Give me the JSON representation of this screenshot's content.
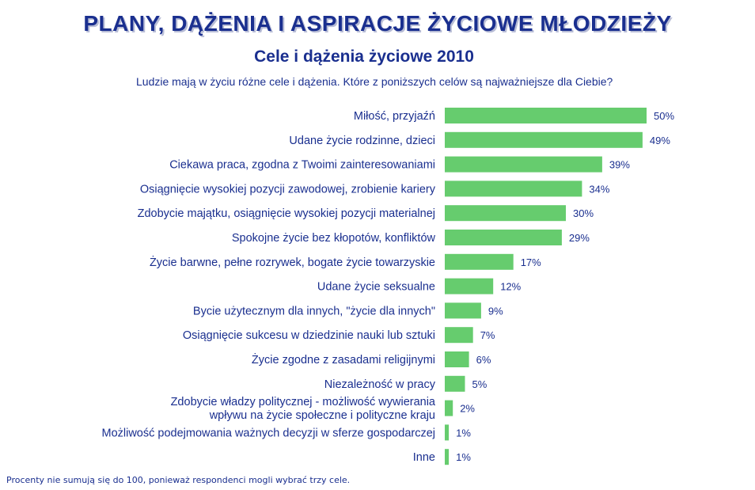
{
  "header": {
    "title": "PLANY, DĄŻENIA I ASPIRACJE ŻYCIOWE MŁODZIEŻY",
    "subtitle": "Cele i dążenia życiowe 2010",
    "question": "Ludzie mają w życiu różne cele i dążenia. Które z poniższych celów są najważniejsze dla Ciebie?"
  },
  "footnote": "Procenty nie sumują się do 100, ponieważ respondenci mogli wybrać trzy cele.",
  "chart_data": {
    "type": "bar",
    "orientation": "horizontal",
    "title": "Cele i dążenia życiowe 2010",
    "value_suffix": "%",
    "categories": [
      "Miłość, przyjaźń",
      "Udane życie rodzinne, dzieci",
      "Ciekawa praca, zgodna z Twoimi zainteresowaniami",
      "Osiągnięcie wysokiej pozycji zawodowej, zrobienie kariery",
      "Zdobycie majątku, osiągnięcie wysokiej pozycji materialnej",
      "Spokojne życie bez kłopotów, konfliktów",
      "Życie barwne, pełne rozrywek, bogate życie towarzyskie",
      "Udane życie seksualne",
      "Bycie użytecznym dla innych, \"życie dla innych\"",
      "Osiągnięcie sukcesu w dziedzinie nauki lub sztuki",
      "Życie zgodne z zasadami religijnymi",
      "Niezależność w pracy",
      "Zdobycie władzy politycznej - możliwość wywierania\nwpływu na życie społeczne i polityczne kraju",
      "Możliwość podejmowania ważnych decyzji w sferze gospodarczej",
      "Inne"
    ],
    "values": [
      50,
      49,
      39,
      34,
      30,
      29,
      17,
      12,
      9,
      7,
      6,
      5,
      2,
      1,
      1
    ],
    "bar_color": "#66cc6e",
    "text_color": "#1a2f8f",
    "grid": false,
    "legend": "none"
  }
}
